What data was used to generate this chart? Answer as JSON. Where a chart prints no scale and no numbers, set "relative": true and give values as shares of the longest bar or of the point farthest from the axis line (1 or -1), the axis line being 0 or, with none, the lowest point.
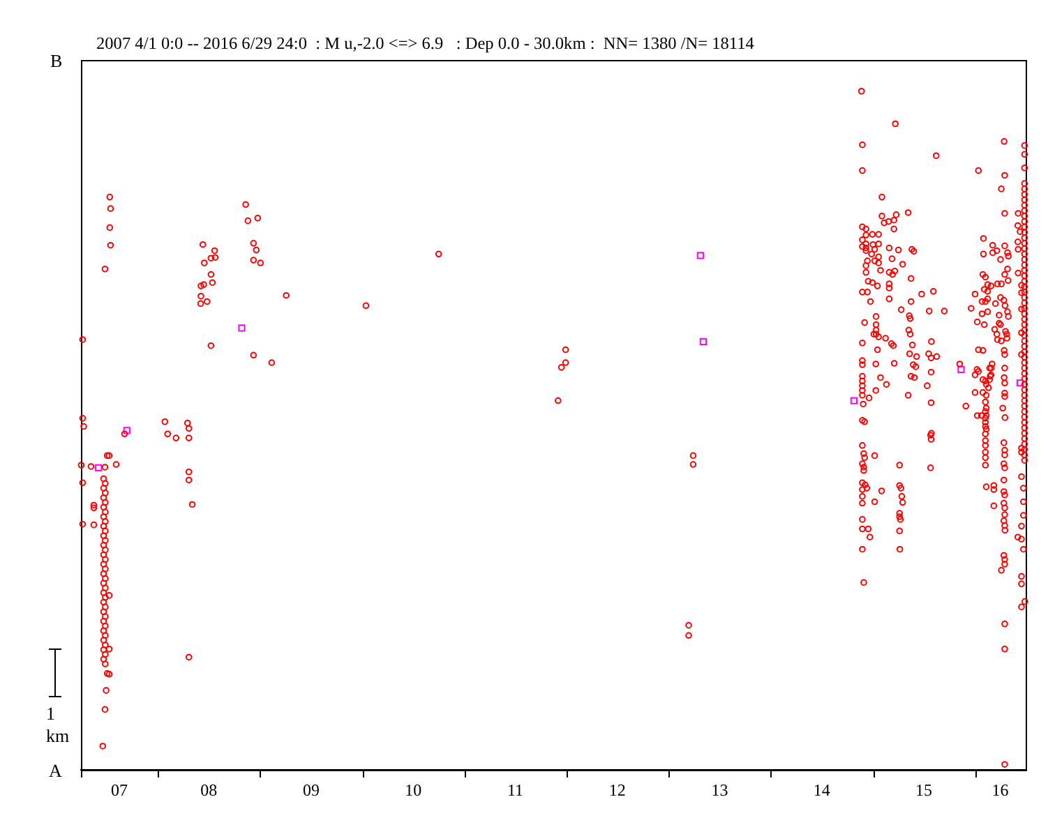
{
  "chart_data": {
    "type": "scatter",
    "title": "2007 4/1 0:0 -- 2016 6/29 24:0  : M u,-2.0 <=> 6.9   : Dep 0.0 - 30.0km :  NN= 1380 /N= 18114",
    "annotations": [
      "B",
      "1 km",
      "A"
    ],
    "relative": true,
    "xlim": [
      "2007-04-01",
      "2016-06-30"
    ],
    "xticks": [
      {
        "value": "2007-04-01",
        "label": null
      },
      {
        "value": "2007-08-16",
        "label": "07"
      },
      {
        "value": "2008-01-01",
        "label": null
      },
      {
        "value": "2008-07-01",
        "label": "08"
      },
      {
        "value": "2009-01-01",
        "label": null
      },
      {
        "value": "2009-07-02",
        "label": "09"
      },
      {
        "value": "2010-01-01",
        "label": null
      },
      {
        "value": "2010-07-02",
        "label": "10"
      },
      {
        "value": "2011-01-01",
        "label": null
      },
      {
        "value": "2011-07-02",
        "label": "11"
      },
      {
        "value": "2012-01-01",
        "label": null
      },
      {
        "value": "2012-07-01",
        "label": "12"
      },
      {
        "value": "2013-01-01",
        "label": null
      },
      {
        "value": "2013-07-02",
        "label": "13"
      },
      {
        "value": "2014-01-01",
        "label": null
      },
      {
        "value": "2014-07-02",
        "label": "14"
      },
      {
        "value": "2015-01-01",
        "label": null
      },
      {
        "value": "2015-07-02",
        "label": "15"
      },
      {
        "value": "2016-01-01",
        "label": null
      },
      {
        "value": "2016-03-31",
        "label": "16"
      }
    ],
    "series": [
      {
        "color": "#ff0000",
        "marker": "circle",
        "x": [
          "2007-07-13",
          "2007-07-16",
          "2007-07-13",
          "2007-07-16",
          "2007-06-26",
          "2007-04-07",
          "2007-04-07",
          "2007-04-11",
          "2007-09-04",
          "2007-07-04",
          "2007-07-11",
          "2007-04-02",
          "2007-05-07",
          "2007-06-26",
          "2007-08-05",
          "2007-04-07",
          "2007-05-17",
          "2007-05-17",
          "2007-04-07",
          "2007-05-17",
          "2007-06-21",
          "2007-06-27",
          "2007-06-21",
          "2007-06-27",
          "2007-06-21",
          "2007-06-27",
          "2007-06-21",
          "2007-06-27",
          "2007-06-21",
          "2007-06-27",
          "2007-06-21",
          "2007-06-27",
          "2007-06-21",
          "2007-06-27",
          "2007-06-21",
          "2007-06-27",
          "2007-06-21",
          "2007-06-27",
          "2007-06-21",
          "2007-06-27",
          "2007-06-21",
          "2007-06-27",
          "2007-06-21",
          "2007-06-27",
          "2007-06-21",
          "2007-06-27",
          "2007-06-21",
          "2007-06-27",
          "2007-06-21",
          "2007-06-27",
          "2007-06-21",
          "2007-06-27",
          "2007-06-21",
          "2007-06-27",
          "2007-06-21",
          "2007-06-27",
          "2007-06-21",
          "2007-06-27",
          "2007-06-21",
          "2007-06-27",
          "2007-07-11",
          "2007-07-11",
          "2007-07-04",
          "2007-07-11",
          "2007-06-30",
          "2007-06-26",
          "2007-06-18",
          "2008-01-26",
          "2008-02-05",
          "2008-03-06",
          "2008-04-16",
          "2008-04-21",
          "2008-04-21",
          "2008-04-21",
          "2008-04-21",
          "2008-05-03",
          "2008-04-21",
          "2008-06-10",
          "2008-07-22",
          "2008-07-09",
          "2008-07-24",
          "2008-06-15",
          "2008-07-09",
          "2008-06-03",
          "2008-06-13",
          "2008-07-14",
          "2008-06-03",
          "2008-06-02",
          "2008-06-25",
          "2008-07-09",
          "2008-11-10",
          "2008-11-18",
          "2008-12-23",
          "2008-12-08",
          "2008-12-18",
          "2008-12-08",
          "2009-01-02",
          "2009-04-04",
          "2008-12-08",
          "2009-02-11",
          "2010-01-14",
          "2010-10-01",
          "2011-12-29",
          "2011-12-29",
          "2011-12-14",
          "2011-12-02",
          "2013-03-29",
          "2013-03-29",
          "2013-03-13",
          "2013-03-13",
          "2014-11-21",
          "2014-11-24",
          "2014-11-24",
          "2014-11-24",
          "2014-12-07",
          "2014-12-07",
          "2014-12-30",
          "2014-12-07",
          "2014-12-07",
          "2014-12-07",
          "2014-11-24",
          "2014-11-24",
          "2014-12-12",
          "2014-12-07",
          "2014-12-07",
          "2014-12-15",
          "2014-12-30",
          "2014-11-24",
          "2014-12-12",
          "2014-12-23",
          "2014-12-02",
          "2014-11-24",
          "2014-11-24",
          "2014-11-24",
          "2014-12-18",
          "2014-11-24",
          "2014-11-24",
          "2014-11-24",
          "2014-11-24",
          "2014-11-24",
          "2014-11-27",
          "2014-12-02",
          "2014-11-24",
          "2014-11-24",
          "2014-11-29",
          "2014-12-02",
          "2014-11-24",
          "2014-11-29",
          "2014-11-29",
          "2014-11-24",
          "2014-12-04",
          "2014-11-24",
          "2014-12-10",
          "2014-11-24",
          "2014-11-24",
          "2014-11-24",
          "2014-11-24",
          "2014-12-15",
          "2014-12-21",
          "2014-11-24",
          "2014-11-29",
          "2014-12-27",
          "2015-03-22",
          "2015-02-02",
          "2015-05-07",
          "2015-02-02",
          "2015-03-25",
          "2015-03-17",
          "2015-02-26",
          "2015-02-10",
          "2015-03-17",
          "2015-01-21",
          "2015-01-01",
          "2015-01-21",
          "2015-01-07",
          "2015-01-21",
          "2015-01-07",
          "2015-03-10",
          "2015-02-28",
          "2015-04-02",
          "2015-05-20",
          "2015-05-27",
          "2015-04-17",
          "2015-01-21",
          "2015-01-28",
          "2015-02-28",
          "2015-03-12",
          "2015-03-20",
          "2015-01-17",
          "2015-02-28",
          "2015-02-28",
          "2015-05-17",
          "2015-02-28",
          "2015-06-24",
          "2015-08-05",
          "2015-05-17",
          "2015-01-12",
          "2015-04-12",
          "2015-07-21",
          "2015-09-13",
          "2015-05-11",
          "2015-05-14",
          "2015-01-12",
          "2015-01-12",
          "2015-01-12",
          "2015-01-04",
          "2015-01-21",
          "2015-05-09",
          "2015-05-14",
          "2015-02-15",
          "2015-03-08",
          "2015-03-15",
          "2015-05-22",
          "2015-07-29",
          "2015-01-17",
          "2015-01-11",
          "2015-03-18",
          "2015-05-12",
          "2015-06-06",
          "2015-07-19",
          "2015-07-28",
          "2015-08-17",
          "2015-05-25",
          "2015-06-03",
          "2015-07-28",
          "2015-01-28",
          "2015-05-17",
          "2015-05-29",
          "2015-02-18",
          "2015-07-14",
          "2015-01-11",
          "2015-05-07",
          "2015-07-28",
          "2015-07-29",
          "2015-01-07",
          "2015-02-01",
          "2015-01-07",
          "2015-04-06",
          "2015-04-06",
          "2015-04-11",
          "2015-04-14",
          "2015-04-17",
          "2015-04-06",
          "2015-04-06",
          "2015-04-09",
          "2015-04-06",
          "2015-04-07",
          "2015-07-26",
          "2015-07-28",
          "2015-07-26",
          "2015-11-29",
          "2015-11-07",
          "2015-08-15",
          "2015-12-18",
          "2016-01-13",
          "2016-04-14",
          "2016-04-16",
          "2016-04-04",
          "2016-04-16",
          "2016-06-03",
          "2016-01-31",
          "2016-01-31",
          "2016-01-29",
          "2016-02-07",
          "2016-02-15",
          "2016-02-27",
          "2016-02-03",
          "2016-01-01",
          "2016-02-15",
          "2016-01-26",
          "2016-02-07",
          "2016-02-15",
          "2016-01-26",
          "2016-02-15",
          "2016-01-09",
          "2016-02-03",
          "2016-01-29",
          "2016-01-13",
          "2016-01-08",
          "2016-01-13",
          "2016-01-01",
          "2016-01-29",
          "2016-02-07",
          "2016-02-10",
          "2016-01-01",
          "2016-01-29",
          "2016-02-10",
          "2016-02-07",
          "2016-02-10",
          "2016-02-10",
          "2016-02-07",
          "2016-02-10",
          "2016-02-07",
          "2016-01-09",
          "2016-02-24",
          "2016-02-28",
          "2016-01-24",
          "2016-02-07",
          "2016-02-07",
          "2016-02-07",
          "2016-02-07",
          "2016-02-07",
          "2016-02-10",
          "2016-03-08",
          "2016-03-08",
          "2016-03-08",
          "2016-02-07",
          "2016-02-07",
          "2016-02-07",
          "2016-04-01",
          "2016-04-26",
          "2016-04-29",
          "2016-03-04",
          "2016-03-04",
          "2016-03-19",
          "2016-04-16",
          "2016-04-26",
          "2016-04-16",
          "2016-04-28",
          "2016-04-04",
          "2016-03-21",
          "2016-04-01",
          "2016-04-13",
          "2016-04-17",
          "2016-03-14",
          "2016-03-27",
          "2016-04-26",
          "2016-04-29",
          "2016-03-27",
          "2016-04-01",
          "2016-03-11",
          "2016-04-19",
          "2016-04-23",
          "2016-04-24",
          "2016-03-19",
          "2016-03-21",
          "2016-04-04",
          "2016-04-14",
          "2016-04-16",
          "2016-04-16",
          "2016-03-02",
          "2016-02-22",
          "2016-04-14",
          "2016-02-27",
          "2016-02-22",
          "2016-04-16",
          "2016-04-16",
          "2016-04-09",
          "2016-04-17",
          "2016-02-18",
          "2016-04-16",
          "2016-04-13",
          "2016-04-16",
          "2016-04-16",
          "2016-04-13",
          "2016-04-16",
          "2016-04-13",
          "2016-04-13",
          "2016-04-16",
          "2016-04-13",
          "2016-04-16",
          "2016-04-16",
          "2016-04-13",
          "2016-04-16",
          "2016-04-17",
          "2016-04-13",
          "2016-04-16",
          "2016-04-16",
          "2016-04-04",
          "2016-04-16",
          "2016-04-16",
          "2016-04-16",
          "2016-06-02",
          "2016-06-10",
          "2016-06-02",
          "2016-06-03",
          "2016-06-03",
          "2016-06-15",
          "2016-06-15",
          "2016-06-15",
          "2016-06-15",
          "2016-06-15",
          "2016-06-15",
          "2016-06-15",
          "2016-06-15",
          "2016-06-22",
          "2016-06-22",
          "2016-06-22",
          "2016-06-15",
          "2016-06-02",
          "2016-06-15",
          "2016-06-22",
          "2016-06-15",
          "2016-06-15",
          "2016-06-27",
          "2016-06-15",
          "2016-06-26",
          "2016-06-26",
          "2016-06-26",
          "2016-06-26",
          "2016-06-26",
          "2016-06-26",
          "2016-06-26",
          "2016-06-26",
          "2016-06-26",
          "2016-06-26",
          "2016-06-26",
          "2016-06-26",
          "2016-06-26",
          "2016-06-26",
          "2016-06-26",
          "2016-06-26",
          "2016-06-26",
          "2016-06-26",
          "2016-06-26",
          "2016-06-26",
          "2016-06-26",
          "2016-06-26",
          "2016-06-26",
          "2016-06-26",
          "2016-06-26",
          "2016-06-26",
          "2016-06-26",
          "2016-06-26",
          "2016-06-26",
          "2016-06-26",
          "2016-06-26",
          "2016-06-26",
          "2016-06-26",
          "2016-06-26",
          "2016-06-26",
          "2016-06-26",
          "2016-06-26",
          "2016-06-26",
          "2016-06-26",
          "2016-06-26",
          "2016-06-26",
          "2016-06-26",
          "2016-06-26",
          "2016-06-26",
          "2016-06-26",
          "2016-06-26",
          "2016-06-26",
          "2016-06-26",
          "2016-06-26",
          "2016-06-26",
          "2016-06-26",
          "2016-06-26",
          "2016-06-26",
          "2016-06-26",
          "2016-06-26"
        ],
        "values": [
          0.844,
          0.827,
          0.799,
          0.773,
          0.738,
          0.634,
          0.518,
          0.506,
          0.495,
          0.463,
          0.463,
          0.449,
          0.447,
          0.446,
          0.45,
          0.423,
          0.39,
          0.386,
          0.362,
          0.361,
          0.429,
          0.422,
          0.415,
          0.408,
          0.401,
          0.394,
          0.387,
          0.38,
          0.373,
          0.366,
          0.359,
          0.352,
          0.345,
          0.338,
          0.331,
          0.324,
          0.317,
          0.31,
          0.303,
          0.296,
          0.289,
          0.282,
          0.275,
          0.268,
          0.261,
          0.254,
          0.247,
          0.24,
          0.233,
          0.226,
          0.219,
          0.212,
          0.205,
          0.198,
          0.191,
          0.184,
          0.177,
          0.17,
          0.163,
          0.156,
          0.257,
          0.178,
          0.142,
          0.141,
          0.117,
          0.089,
          0.035,
          0.513,
          0.495,
          0.489,
          0.511,
          0.503,
          0.489,
          0.439,
          0.427,
          0.391,
          0.166,
          0.774,
          0.765,
          0.754,
          0.755,
          0.747,
          0.73,
          0.713,
          0.715,
          0.718,
          0.698,
          0.687,
          0.69,
          0.625,
          0.833,
          0.809,
          0.813,
          0.776,
          0.766,
          0.751,
          0.747,
          0.699,
          0.611,
          0.6,
          0.684,
          0.76,
          0.619,
          0.6,
          0.593,
          0.544,
          0.463,
          0.45,
          0.213,
          0.198,
          1,
          0.921,
          0.883,
          0.8,
          0.797,
          0.788,
          0.789,
          0.775,
          0.769,
          0.765,
          0.771,
          0.781,
          0.75,
          0.743,
          0.733,
          0.72,
          0.718,
          0.704,
          0.704,
          0.69,
          0.659,
          0.629,
          0.603,
          0.597,
          0.548,
          0.58,
          0.573,
          0.566,
          0.559,
          0.552,
          0.539,
          0.513,
          0.515,
          0.478,
          0.466,
          0.46,
          0.451,
          0.446,
          0.441,
          0.423,
          0.42,
          0.413,
          0.415,
          0.403,
          0.393,
          0.369,
          0.355,
          0.355,
          0.343,
          0.325,
          0.276,
          0.76,
          0.952,
          0.844,
          0.821,
          0.816,
          0.818,
          0.81,
          0.808,
          0.806,
          0.797,
          0.789,
          0.774,
          0.775,
          0.767,
          0.756,
          0.75,
          0.753,
          0.769,
          0.766,
          0.767,
          0.764,
          0.745,
          0.747,
          0.736,
          0.733,
          0.73,
          0.735,
          0.713,
          0.716,
          0.71,
          0.724,
          0.694,
          0.701,
          0.705,
          0.69,
          0.668,
          0.678,
          0.676,
          0.676,
          0.669,
          0.665,
          0.656,
          0.648,
          0.642,
          0.642,
          0.638,
          0.648,
          0.642,
          0.636,
          0.628,
          0.625,
          0.626,
          0.631,
          0.619,
          0.598,
          0.599,
          0.613,
          0.609,
          0.613,
          0.607,
          0.609,
          0.597,
          0.594,
          0.586,
          0.578,
          0.58,
          0.578,
          0.568,
          0.566,
          0.559,
          0.552,
          0.541,
          0.496,
          0.463,
          0.411,
          0.395,
          0.449,
          0.419,
          0.415,
          0.403,
          0.394,
          0.378,
          0.373,
          0.369,
          0.352,
          0.325,
          0.493,
          0.487,
          0.445,
          0.536,
          0.598,
          0.905,
          0.68,
          0.883,
          0.926,
          0.876,
          0.856,
          0.82,
          0.82,
          0.783,
          0.76,
          0.73,
          0.726,
          0.715,
          0.713,
          0.708,
          0.701,
          0.705,
          0.69,
          0.69,
          0.694,
          0.672,
          0.675,
          0.66,
          0.656,
          0.618,
          0.619,
          0.59,
          0.587,
          0.582,
          0.575,
          0.573,
          0.568,
          0.556,
          0.556,
          0.552,
          0.542,
          0.533,
          0.522,
          0.512,
          0.502,
          0.495,
          0.522,
          0.58,
          0.592,
          0.522,
          0.485,
          0.478,
          0.468,
          0.46,
          0.449,
          0.417,
          0.419,
          0.413,
          0.389,
          0.528,
          0.518,
          0.506,
          0.752,
          0.762,
          0.757,
          0.773,
          0.762,
          0.765,
          0.772,
          0.738,
          0.73,
          0.721,
          0.716,
          0.716,
          0.696,
          0.692,
          0.684,
          0.687,
          0.67,
          0.675,
          0.668,
          0.658,
          0.656,
          0.649,
          0.646,
          0.642,
          0.636,
          0.642,
          0.634,
          0.632,
          0.618,
          0.612,
          0.592,
          0.598,
          0.592,
          0.578,
          0.582,
          0.575,
          0.555,
          0.55,
          0.533,
          0.519,
          0.563,
          0.57,
          0.482,
          0.471,
          0.464,
          0.451,
          0.445,
          0.427,
          0.41,
          0.405,
          0.393,
          0.386,
          0.376,
          0.367,
          0.36,
          0.353,
          0.316,
          0.31,
          0.303,
          0.294,
          0.215,
          0.178,
          0.008,
          0.802,
          0.793,
          0.778,
          0.767,
          0.732,
          0.714,
          0.703,
          0.679,
          0.644,
          0.612,
          0.474,
          0.468,
          0.432,
          0.415,
          0.395,
          0.375,
          0.359,
          0.343,
          0.34,
          0.325,
          0.285,
          0.274,
          0.248,
          0.24,
          0.92,
          0.907,
          0.887,
          0.864,
          0.856,
          0.848,
          0.84,
          0.832,
          0.824,
          0.816,
          0.808,
          0.8,
          0.792,
          0.784,
          0.776,
          0.768,
          0.76,
          0.752,
          0.744,
          0.736,
          0.728,
          0.72,
          0.712,
          0.704,
          0.696,
          0.688,
          0.68,
          0.672,
          0.664,
          0.656,
          0.648,
          0.64,
          0.632,
          0.624,
          0.616,
          0.608,
          0.6,
          0.592,
          0.584,
          0.576,
          0.568,
          0.56,
          0.552,
          0.544,
          0.536,
          0.528,
          0.52,
          0.512,
          0.504,
          0.496,
          0.488,
          0.48,
          0.472,
          0.464,
          0.456
        ]
      },
      {
        "color": "#ff00ff",
        "marker": "square",
        "x": [
          "2007-09-12",
          "2007-06-03",
          "2008-10-27",
          "2013-04-24",
          "2013-05-04",
          "2014-10-25",
          "2015-11-12",
          "2016-06-10"
        ],
        "values": [
          0.5,
          0.445,
          0.651,
          0.758,
          0.631,
          0.544,
          0.59,
          0.57
        ]
      }
    ]
  }
}
